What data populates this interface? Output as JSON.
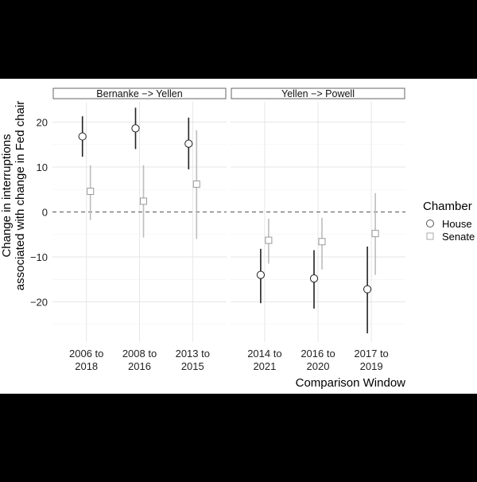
{
  "chart_data": {
    "type": "scatter",
    "subtype": "point-range (faceted)",
    "ylabel_line1": "Change in interruptions",
    "ylabel_line2": "associated with change in Fed chair",
    "xlabel": "Comparison Window",
    "ylim": [
      -28,
      24
    ],
    "yticks": [
      20,
      10,
      0,
      -10,
      -20
    ],
    "ytick_labels": [
      "20",
      "10",
      "0",
      "−10",
      "−20"
    ],
    "reference_line": 0,
    "grid": true,
    "legend": {
      "title": "Chamber",
      "position": "right",
      "items": [
        {
          "label": "House",
          "marker": "circle"
        },
        {
          "label": "Senate",
          "marker": "square"
        }
      ]
    },
    "colors": {
      "house": "#222222",
      "senate": "#bdbdbd",
      "grid": "#e6e6e6",
      "strip_border": "#666666",
      "background": "#ffffff"
    },
    "facets": [
      {
        "label": "Bernanke −> Yellen",
        "windows": [
          {
            "label_line1": "2006 to",
            "label_line2": "2018",
            "house": {
              "estimate": 16.8,
              "low": 12.3,
              "high": 21.3
            },
            "senate": {
              "estimate": 4.6,
              "low": -1.8,
              "high": 10.4
            }
          },
          {
            "label_line1": "2008 to",
            "label_line2": "2016",
            "house": {
              "estimate": 18.6,
              "low": 14.0,
              "high": 23.2
            },
            "senate": {
              "estimate": 2.4,
              "low": -5.7,
              "high": 10.4
            }
          },
          {
            "label_line1": "2013 to",
            "label_line2": "2015",
            "house": {
              "estimate": 15.2,
              "low": 9.5,
              "high": 21.0
            },
            "senate": {
              "estimate": 6.2,
              "low": -6.0,
              "high": 18.2
            }
          }
        ]
      },
      {
        "label": "Yellen −> Powell",
        "windows": [
          {
            "label_line1": "2014 to",
            "label_line2": "2021",
            "house": {
              "estimate": -14.0,
              "low": -20.3,
              "high": -8.2
            },
            "senate": {
              "estimate": -6.3,
              "low": -11.5,
              "high": -1.5
            }
          },
          {
            "label_line1": "2016 to",
            "label_line2": "2020",
            "house": {
              "estimate": -14.8,
              "low": -21.5,
              "high": -8.5
            },
            "senate": {
              "estimate": -6.6,
              "low": -12.8,
              "high": -1.3
            }
          },
          {
            "label_line1": "2017 to",
            "label_line2": "2019",
            "house": {
              "estimate": -17.2,
              "low": -27.0,
              "high": -7.7
            },
            "senate": {
              "estimate": -4.8,
              "low": -14.0,
              "high": 4.2
            }
          }
        ]
      }
    ]
  }
}
